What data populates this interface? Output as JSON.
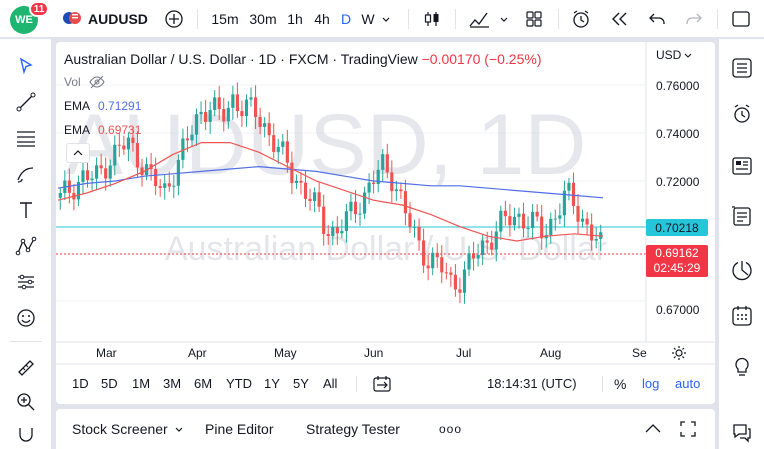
{
  "topbar": {
    "notifications": "11",
    "avatar_text": "WE",
    "symbol": "AUDUSD",
    "intervals": [
      "15m",
      "30m",
      "1h",
      "4h",
      "D",
      "W"
    ],
    "active_interval": "D"
  },
  "legend": {
    "title": "Australian Dollar / U.S. Dollar · 1D · FXCM · TradingView",
    "change": "−0.00170 (−0.25%)",
    "vol_label": "Vol",
    "ema1_label": "EMA",
    "ema1_value": "0.71291",
    "ema2_label": "EMA",
    "ema2_value": "0.69731"
  },
  "watermark": {
    "big": "AUDUSD, 1D",
    "sub": "Australian Dollar / U.S. Dollar"
  },
  "price_axis": {
    "currency": "USD",
    "ticks": [
      "0.76000",
      "0.74000",
      "0.72000",
      "0.67000"
    ],
    "label_blue": "0.70218",
    "label_red_price": "0.69162",
    "label_red_timer": "02:45:29"
  },
  "time_axis": {
    "ticks": [
      "Mar",
      "Apr",
      "May",
      "Jun",
      "Jul",
      "Aug",
      "Se"
    ]
  },
  "range_bar": {
    "ranges": [
      "1D",
      "5D",
      "1M",
      "3M",
      "6M",
      "YTD",
      "1Y",
      "5Y",
      "All"
    ],
    "clock": "18:14:31 (UTC)",
    "percent": "%",
    "log": "log",
    "auto": "auto"
  },
  "bottom_tabs": {
    "tabs": [
      "Stock Screener",
      "Pine Editor",
      "Strategy Tester"
    ],
    "more": "ooo"
  },
  "colors": {
    "up": "#26a69a",
    "down": "#ef5350",
    "ema_long": "#4f6ee8",
    "ema_short": "#f05454",
    "blue_label": "#26c6da",
    "red_label": "#f23645",
    "accent": "#2962ff"
  },
  "chart_data": {
    "type": "candlestick",
    "x_ticks": [
      "Mar",
      "Apr",
      "May",
      "Jun",
      "Jul",
      "Aug",
      "Se"
    ],
    "y_ticks": [
      0.76,
      0.74,
      0.72,
      0.67
    ],
    "close_path": [
      0.712,
      0.718,
      0.722,
      0.72,
      0.728,
      0.733,
      0.735,
      0.729,
      0.72,
      0.715,
      0.726,
      0.735,
      0.748,
      0.752,
      0.745,
      0.755,
      0.75,
      0.748,
      0.742,
      0.732,
      0.725,
      0.718,
      0.71,
      0.702,
      0.698,
      0.704,
      0.712,
      0.718,
      0.726,
      0.722,
      0.706,
      0.695,
      0.688,
      0.684,
      0.678,
      0.68,
      0.688,
      0.695,
      0.7,
      0.704,
      0.706,
      0.702,
      0.698,
      0.706,
      0.714,
      0.708,
      0.7,
      0.692
    ],
    "ema_long_path": [
      0.717,
      0.719,
      0.72,
      0.722,
      0.723,
      0.724,
      0.725,
      0.726,
      0.725,
      0.724,
      0.722,
      0.72,
      0.719,
      0.718,
      0.718,
      0.717,
      0.716,
      0.715,
      0.714,
      0.713
    ],
    "ema_short_path": [
      0.712,
      0.715,
      0.719,
      0.724,
      0.731,
      0.736,
      0.736,
      0.732,
      0.726,
      0.72,
      0.716,
      0.712,
      0.71,
      0.706,
      0.701,
      0.697,
      0.695,
      0.697,
      0.698,
      0.697
    ],
    "current_price": 0.69162,
    "level_line": 0.70218
  }
}
